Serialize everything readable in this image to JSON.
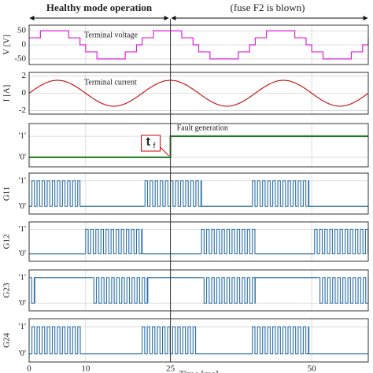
{
  "header": {
    "left": "Healthy mode operation",
    "right": "(fuse F2 is blown)"
  },
  "chart_data": [
    {
      "type": "line",
      "step": true,
      "ylabel": "V [V]",
      "annotation": "Terminal voltage",
      "color": "#dd22dd",
      "xlim": [
        0,
        60
      ],
      "ylim": [
        -70,
        70
      ],
      "yticks": [
        -50,
        0,
        50
      ],
      "x": [
        0,
        1,
        2,
        3,
        4,
        5,
        6,
        7,
        8,
        9,
        10,
        11,
        12,
        13,
        14,
        15,
        16,
        17,
        18,
        19,
        20,
        21,
        22,
        23,
        24,
        25,
        26,
        27,
        28,
        29,
        30,
        31,
        32,
        33,
        34,
        35,
        36,
        37,
        38,
        39,
        40,
        41,
        42,
        43,
        44,
        45,
        46,
        47,
        48,
        49,
        50,
        51,
        52,
        53,
        54,
        55,
        56,
        57,
        58,
        59,
        60
      ],
      "values": [
        25,
        25,
        50,
        50,
        50,
        50,
        50,
        25,
        25,
        0,
        -25,
        -25,
        -50,
        -50,
        -50,
        -50,
        -50,
        -25,
        -25,
        0,
        25,
        25,
        50,
        50,
        50,
        50,
        50,
        25,
        25,
        0,
        -25,
        -25,
        -50,
        -50,
        -50,
        -50,
        -50,
        -25,
        -25,
        0,
        25,
        25,
        50,
        50,
        50,
        50,
        50,
        25,
        25,
        0,
        -25,
        -25,
        -50,
        -50,
        -50,
        -50,
        -50,
        -25,
        -25,
        0,
        25
      ]
    },
    {
      "type": "line",
      "ylabel": "I [A]",
      "annotation": "Terminal current",
      "color": "#c41a1a",
      "xlim": [
        0,
        60
      ],
      "ylim": [
        -2.4,
        2.4
      ],
      "yticks": [
        -2,
        0,
        2
      ],
      "x": [
        0,
        1,
        2,
        3,
        4,
        5,
        6,
        7,
        8,
        9,
        10,
        11,
        12,
        13,
        14,
        15,
        16,
        17,
        18,
        19,
        20,
        21,
        22,
        23,
        24,
        25,
        26,
        27,
        28,
        29,
        30,
        31,
        32,
        33,
        34,
        35,
        36,
        37,
        38,
        39,
        40,
        41,
        42,
        43,
        44,
        45,
        46,
        47,
        48,
        49,
        50,
        51,
        52,
        53,
        54,
        55,
        56,
        57,
        58,
        59,
        60
      ],
      "values": [
        0,
        0.46,
        0.88,
        1.21,
        1.43,
        1.5,
        1.43,
        1.21,
        0.88,
        0.46,
        0,
        -0.46,
        -0.88,
        -1.21,
        -1.43,
        -1.5,
        -1.43,
        -1.21,
        -0.88,
        -0.46,
        0,
        0.46,
        0.88,
        1.21,
        1.43,
        1.5,
        1.43,
        1.21,
        0.88,
        0.46,
        0,
        -0.46,
        -0.88,
        -1.21,
        -1.43,
        -1.5,
        -1.43,
        -1.21,
        -0.88,
        -0.46,
        0,
        0.46,
        0.88,
        1.21,
        1.43,
        1.5,
        1.43,
        1.21,
        0.88,
        0.46,
        0,
        -0.46,
        -0.88,
        -1.21,
        -1.43,
        -1.5,
        -1.43,
        -1.21,
        -0.88,
        -0.46,
        0
      ]
    },
    {
      "type": "step",
      "annotation": "Fault generation",
      "marker": {
        "main": "t",
        "sub": "f"
      },
      "color": "#1f7a1f",
      "xlim": [
        0,
        60
      ],
      "ylim": [
        -0.45,
        1.6
      ],
      "yticks": [
        {
          "value": 0,
          "label": "'0'"
        },
        {
          "value": 1,
          "label": "'1'"
        }
      ],
      "x": [
        0,
        25,
        25,
        60
      ],
      "values": [
        0,
        0,
        1,
        1
      ]
    },
    {
      "type": "pulse",
      "ylabel": "G11",
      "color": "#2a6fa8",
      "xlim": [
        0,
        60
      ],
      "ylim": [
        -0.3,
        1.3
      ],
      "yticks": [
        {
          "value": 0,
          "label": "'0'"
        },
        {
          "value": 1,
          "label": "'1'"
        }
      ],
      "period": 0.9,
      "idle": 0,
      "bursts": [
        [
          0.5,
          9
        ],
        [
          20.5,
          30.5
        ],
        [
          39.5,
          49.5
        ]
      ]
    },
    {
      "type": "pulse",
      "ylabel": "G12",
      "color": "#2a6fa8",
      "xlim": [
        0,
        60
      ],
      "ylim": [
        -0.3,
        1.3
      ],
      "yticks": [
        {
          "value": 0,
          "label": "'0'"
        },
        {
          "value": 1,
          "label": "'1'"
        }
      ],
      "period": 0.9,
      "idle": 0,
      "bursts": [
        [
          10,
          20
        ],
        [
          30.5,
          40
        ],
        [
          50.5,
          60
        ]
      ]
    },
    {
      "type": "pulse",
      "ylabel": "G23",
      "color": "#2a6fa8",
      "xlim": [
        0,
        60
      ],
      "ylim": [
        -0.3,
        1.3
      ],
      "yticks": [
        {
          "value": 0,
          "label": "'0'"
        },
        {
          "value": 1,
          "label": "'1'"
        }
      ],
      "period": 0.9,
      "idle": 1,
      "bursts": [
        [
          0,
          1
        ],
        [
          11,
          21
        ],
        [
          30.5,
          40
        ],
        [
          51,
          60
        ]
      ]
    },
    {
      "type": "pulse",
      "ylabel": "G24",
      "color": "#2a6fa8",
      "xlim": [
        0,
        60
      ],
      "ylim": [
        -0.3,
        1.3
      ],
      "yticks": [
        {
          "value": 0,
          "label": "'0'"
        },
        {
          "value": 1,
          "label": "'1'"
        }
      ],
      "period": 0.9,
      "idle": 0,
      "bursts": [
        [
          0.5,
          9.5
        ],
        [
          20,
          29.5
        ],
        [
          39.5,
          49.5
        ]
      ],
      "xticks": [
        0,
        10,
        25,
        50
      ],
      "xlabel": "Time [ms]"
    }
  ]
}
